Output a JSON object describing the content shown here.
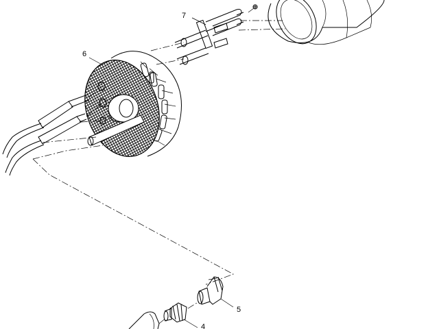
{
  "diagram": {
    "type": "exploded-parts-view",
    "callouts": [
      {
        "id": "part-5",
        "label": "5"
      },
      {
        "id": "part-4",
        "label": "4"
      },
      {
        "id": "part-6",
        "label": "6"
      },
      {
        "id": "part-7",
        "label": "7"
      }
    ]
  }
}
